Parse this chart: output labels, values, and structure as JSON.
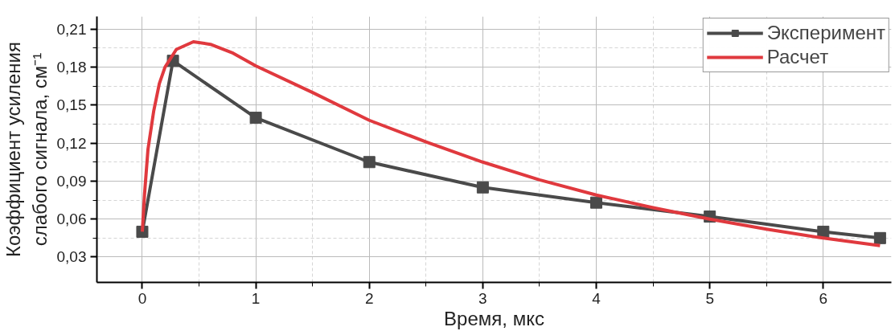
{
  "chart_data": {
    "type": "line",
    "xlabel": "Время, мкс",
    "ylabel": "Коэффициент усиления\nслабого сигнала, см⁻¹",
    "xlim": [
      -0.4,
      6.6
    ],
    "ylim": [
      0.01,
      0.22
    ],
    "xticks": [
      0,
      1,
      2,
      3,
      4,
      5,
      6
    ],
    "yticks": [
      {
        "value": 0.03,
        "label": "0,03"
      },
      {
        "value": 0.06,
        "label": "0,06"
      },
      {
        "value": 0.09,
        "label": "0,09"
      },
      {
        "value": 0.12,
        "label": "0,12"
      },
      {
        "value": 0.15,
        "label": "0,15"
      },
      {
        "value": 0.18,
        "label": "0,18"
      },
      {
        "value": 0.21,
        "label": "0,21"
      }
    ],
    "grid": true,
    "legend": "top right",
    "line_style": "solid",
    "series": [
      {
        "name": "Эксперимент",
        "color": "#4a4a4a",
        "marker": "square",
        "x": [
          0,
          0.27,
          1,
          2,
          3,
          4,
          5,
          6,
          6.5
        ],
        "values": [
          0.05,
          0.185,
          0.14,
          0.105,
          0.085,
          0.073,
          0.062,
          0.05,
          0.045
        ]
      },
      {
        "name": "Расчет",
        "color": "#e0393e",
        "marker": "none",
        "x": [
          0,
          0.02,
          0.05,
          0.1,
          0.15,
          0.2,
          0.3,
          0.45,
          0.6,
          0.8,
          1,
          1.5,
          2,
          2.5,
          3,
          3.5,
          4,
          4.5,
          5,
          5.5,
          6,
          6.5
        ],
        "values": [
          0.05,
          0.08,
          0.115,
          0.145,
          0.167,
          0.18,
          0.194,
          0.2,
          0.198,
          0.191,
          0.181,
          0.16,
          0.138,
          0.121,
          0.105,
          0.091,
          0.079,
          0.069,
          0.06,
          0.052,
          0.045,
          0.039
        ]
      }
    ]
  }
}
